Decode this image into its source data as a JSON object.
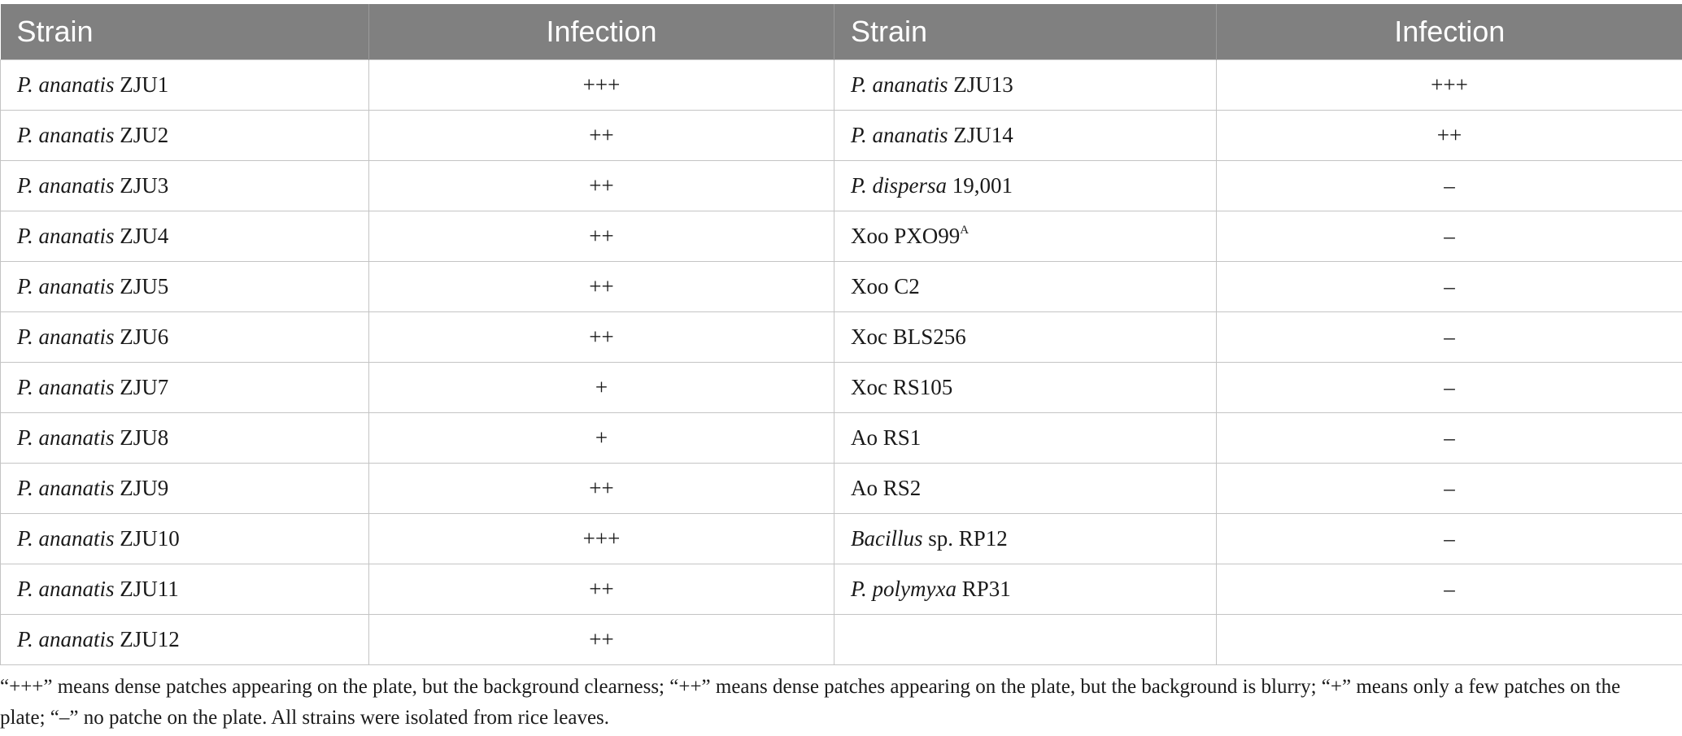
{
  "header": {
    "col1": "Strain",
    "col2": "Infection",
    "col3": "Strain",
    "col4": "Infection"
  },
  "rows": [
    {
      "l_it": "P. ananatis",
      "l_rest": " ZJU1",
      "l_inf": "+++",
      "r_it": "P. ananatis",
      "r_rest": " ZJU13",
      "r_sup": "",
      "r_inf": "+++"
    },
    {
      "l_it": "P. ananatis",
      "l_rest": " ZJU2",
      "l_inf": "++",
      "r_it": "P. ananatis",
      "r_rest": " ZJU14",
      "r_sup": "",
      "r_inf": "++"
    },
    {
      "l_it": "P. ananatis",
      "l_rest": " ZJU3",
      "l_inf": "++",
      "r_it": "P. dispersa",
      "r_rest": " 19,001",
      "r_sup": "",
      "r_inf": "–"
    },
    {
      "l_it": "P. ananatis",
      "l_rest": " ZJU4",
      "l_inf": "++",
      "r_it": "",
      "r_rest": "Xoo PXO99",
      "r_sup": "A",
      "r_inf": "–"
    },
    {
      "l_it": "P. ananatis",
      "l_rest": " ZJU5",
      "l_inf": "++",
      "r_it": "",
      "r_rest": "Xoo C2",
      "r_sup": "",
      "r_inf": "–"
    },
    {
      "l_it": "P. ananatis",
      "l_rest": " ZJU6",
      "l_inf": "++",
      "r_it": "",
      "r_rest": "Xoc BLS256",
      "r_sup": "",
      "r_inf": "–"
    },
    {
      "l_it": "P. ananatis",
      "l_rest": " ZJU7",
      "l_inf": "+",
      "r_it": "",
      "r_rest": "Xoc RS105",
      "r_sup": "",
      "r_inf": "–"
    },
    {
      "l_it": "P. ananatis",
      "l_rest": " ZJU8",
      "l_inf": "+",
      "r_it": "",
      "r_rest": "Ao RS1",
      "r_sup": "",
      "r_inf": "–"
    },
    {
      "l_it": "P. ananatis",
      "l_rest": " ZJU9",
      "l_inf": "++",
      "r_it": "",
      "r_rest": "Ao RS2",
      "r_sup": "",
      "r_inf": "–"
    },
    {
      "l_it": "P. ananatis",
      "l_rest": " ZJU10",
      "l_inf": "+++",
      "r_it": "Bacillus",
      "r_rest": " sp. RP12",
      "r_sup": "",
      "r_inf": "–"
    },
    {
      "l_it": "P. ananatis",
      "l_rest": " ZJU11",
      "l_inf": "++",
      "r_it": "P. polymyxa",
      "r_rest": " RP31",
      "r_sup": "",
      "r_inf": "–"
    },
    {
      "l_it": "P. ananatis",
      "l_rest": " ZJU12",
      "l_inf": "++",
      "r_it": "",
      "r_rest": "",
      "r_sup": "",
      "r_inf": ""
    }
  ],
  "footnote": "“+++” means dense patches appearing on the plate, but the background clearness; “++” means dense patches appearing on the plate, but the background is blurry; “+” means only a few patches on the plate; “–” no patche on the plate. All strains were isolated from rice leaves."
}
